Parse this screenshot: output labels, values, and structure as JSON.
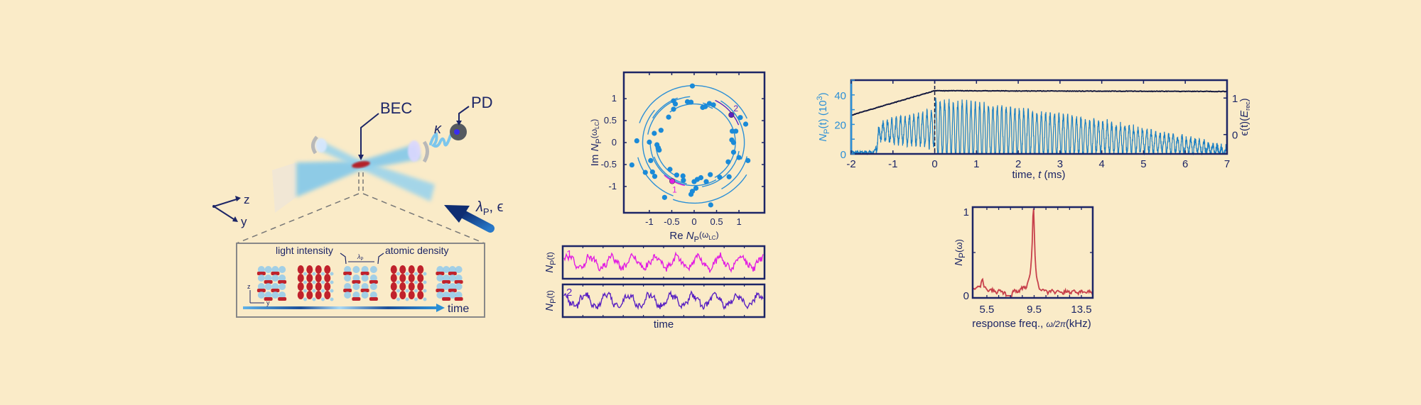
{
  "colors": {
    "background": "#FAEBC8",
    "axis": "#1c2566",
    "signal_blue": "#1a7fc4",
    "trace1": "#e21ee2",
    "trace2": "#5a22c2",
    "spectrum": "#c7404b",
    "beam": "#7cc6ec",
    "bec": "#b3202a"
  },
  "setup": {
    "bec_label": "BEC",
    "pd_label": "PD",
    "kappa_label": "κ",
    "pump_label_main": "λ",
    "pump_label_sub": "P",
    "pump_label_rest": ", ϵ",
    "axis_z": "z",
    "axis_y": "y",
    "inset": {
      "light_intensity": "light intensity",
      "atomic_density": "atomic density",
      "lambda_main": "λ",
      "lambda_sub": "P",
      "axis_z": "z",
      "axis_y": "y",
      "time_label": "time"
    }
  },
  "chart_data": [
    {
      "type": "scatter",
      "xlabel": {
        "pre": "Re ",
        "main": "N",
        "sub": "P",
        "arg": "(ω",
        "argsub": "LC",
        "end": ")"
      },
      "ylabel": {
        "pre": "Im ",
        "main": "N",
        "sub": "P",
        "arg": "(ω",
        "argsub": "LC",
        "end": ")"
      },
      "xlim": [
        -1.57,
        1.57
      ],
      "ylim": [
        -1.6,
        1.6
      ],
      "xticks": [
        "-1",
        "-0.5",
        "0",
        "0.5",
        "1"
      ],
      "yticks": [
        "1",
        "0.5",
        "0",
        "-0.5",
        "-1"
      ],
      "points": [
        [
          -0.04,
          1.29
        ],
        [
          -0.46,
          0.95
        ],
        [
          -0.42,
          0.88
        ],
        [
          -0.46,
          0.76
        ],
        [
          -0.15,
          0.93
        ],
        [
          -0.07,
          0.92
        ],
        [
          0.19,
          0.8
        ],
        [
          0.25,
          0.82
        ],
        [
          0.34,
          0.89
        ],
        [
          0.43,
          0.86
        ],
        [
          -0.57,
          0.58
        ],
        [
          1.03,
          0.57
        ],
        [
          1.15,
          0.42
        ],
        [
          0.85,
          0.26
        ],
        [
          0.93,
          0.26
        ],
        [
          0.84,
          0.06
        ],
        [
          0.88,
          0.0
        ],
        [
          0.88,
          -0.22
        ],
        [
          1.0,
          -0.34
        ],
        [
          1.2,
          -0.41
        ],
        [
          0.76,
          -0.44
        ],
        [
          0.78,
          -0.78
        ],
        [
          0.57,
          -0.79
        ],
        [
          0.36,
          -0.73
        ],
        [
          0.27,
          -0.89
        ],
        [
          0.15,
          -0.8
        ],
        [
          0.07,
          -0.84
        ],
        [
          0.0,
          -0.89
        ],
        [
          0.04,
          -1.04
        ],
        [
          -0.04,
          -1.11
        ],
        [
          -0.07,
          -1.18
        ],
        [
          0.37,
          -1.42
        ],
        [
          -0.25,
          -0.76
        ],
        [
          -0.24,
          -0.86
        ],
        [
          -0.39,
          -0.74
        ],
        [
          -0.54,
          -0.61
        ],
        [
          -0.66,
          -1.25
        ],
        [
          -1.09,
          -0.68
        ],
        [
          -0.93,
          -0.67
        ],
        [
          -0.88,
          -0.77
        ],
        [
          -0.97,
          -0.41
        ],
        [
          -1.39,
          -0.51
        ],
        [
          -1.0,
          0.01
        ],
        [
          -1.28,
          0.04
        ],
        [
          -0.83,
          -0.05
        ],
        [
          -0.8,
          -0.12
        ],
        [
          -0.78,
          -0.17
        ],
        [
          -0.89,
          0.21
        ],
        [
          -0.74,
          0.28
        ]
      ],
      "highlighted": [
        {
          "label": "1",
          "point": [
            -0.49,
            -0.88
          ],
          "arc": {
            "r": 1.0,
            "from_deg": 228,
            "to_deg": 258
          }
        },
        {
          "label": "2",
          "point": [
            0.83,
            0.63
          ],
          "arc": {
            "r": 1.07,
            "from_deg": 22,
            "to_deg": 66
          }
        }
      ],
      "arcs": [
        [
          1.3,
          25,
          160
        ],
        [
          1.3,
          195,
          250
        ],
        [
          1.38,
          250,
          330
        ],
        [
          1.15,
          140,
          215
        ],
        [
          1.05,
          95,
          172
        ],
        [
          0.98,
          180,
          300
        ],
        [
          0.92,
          -60,
          80
        ],
        [
          0.88,
          62,
          130
        ],
        [
          1.02,
          280,
          350
        ],
        [
          1.12,
          -20,
          60
        ],
        [
          0.95,
          200,
          262
        ],
        [
          1.22,
          300,
          345
        ],
        [
          0.86,
          185,
          240
        ],
        [
          1.08,
          110,
          150
        ]
      ]
    },
    {
      "type": "line",
      "xlabel": "time",
      "series": [
        {
          "label": "1",
          "ylabel": {
            "main": "N",
            "sub": "P",
            "rest": "(t)"
          }
        },
        {
          "label": "2",
          "ylabel": {
            "main": "N",
            "sub": "P",
            "rest": "(t)"
          }
        }
      ]
    },
    {
      "type": "line",
      "xlabel": {
        "pre": "time, ",
        "italic": "t",
        "post": " (ms)"
      },
      "ylabel_left": {
        "main": "N",
        "sub": "P",
        "rest": "(t)  (10",
        "sup": "3",
        "end": ")"
      },
      "ylabel_right": {
        "main": "ϵ(t)(",
        "italic": "E",
        "sub": "rec",
        "end": ")"
      },
      "xlim": [
        -2,
        7
      ],
      "ylim_left": [
        0,
        50
      ],
      "ylim_right": [
        -0.53,
        1.49
      ],
      "xticks": [
        "-2",
        "-1",
        "0",
        "1",
        "2",
        "3",
        "4",
        "5",
        "6",
        "7"
      ],
      "yticks_left": [
        "0",
        "20",
        "40"
      ],
      "yticks_right": [
        "0",
        "1"
      ],
      "marker_line_x": 0,
      "epsilon_ramp": {
        "t": [
          -2,
          0,
          7
        ],
        "value": [
          0.53,
          1.2,
          1.18
        ]
      },
      "photon_number_envelope": {
        "t": [
          -2,
          -1.45,
          -1.3,
          0,
          1,
          4,
          6.5,
          7
        ],
        "mean": [
          1,
          1,
          15,
          17,
          15,
          11,
          4,
          1
        ],
        "oscillation_freq_kHz": 9.5
      }
    },
    {
      "type": "line",
      "xlabel": {
        "pre": "response freq., ",
        "omega": "ω/2π",
        "post": "(kHz)"
      },
      "ylabel": {
        "main": "N",
        "sub": "P",
        "rest": "(ω)"
      },
      "xlim": [
        4.3,
        14.46
      ],
      "ylim": [
        0,
        1
      ],
      "xticks": [
        "5.5",
        "9.5",
        "13.5"
      ],
      "yticks": [
        "0",
        "1"
      ],
      "peak": {
        "x": 9.44,
        "y": 1.0
      },
      "side_peak": {
        "x": 5.1,
        "y": 0.14
      }
    }
  ]
}
